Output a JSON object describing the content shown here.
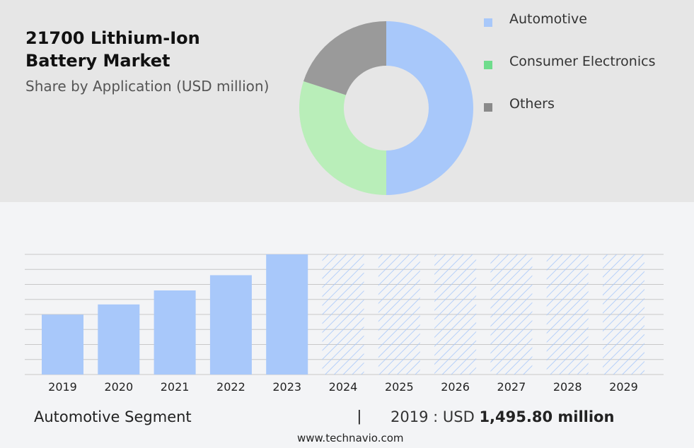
{
  "title": "21700 Lithium-Ion Battery Market",
  "subtitle": "Share by Application (USD million)",
  "colors": {
    "automotive": "#a8c8fa",
    "consumer_electronics": "#b9eeb9",
    "others": "#9a9a9a",
    "legend_consumer": "#6fdc8c",
    "legend_others": "#8a8a8a",
    "forecast_hatch": "#a8c8fa",
    "grid": "#c8c8c8"
  },
  "legend": [
    {
      "label": "Automotive",
      "color_key": "automotive"
    },
    {
      "label": "Consumer Electronics",
      "color_key": "legend_consumer"
    },
    {
      "label": "Others",
      "color_key": "legend_others"
    }
  ],
  "chart_data": [
    {
      "type": "pie",
      "title": "Share by Application (USD million)",
      "categories": [
        "Automotive",
        "Consumer Electronics",
        "Others"
      ],
      "values": [
        50,
        30,
        20
      ]
    },
    {
      "type": "bar",
      "categories": [
        "2019",
        "2020",
        "2021",
        "2022",
        "2023",
        "2024",
        "2025",
        "2026",
        "2027",
        "2028",
        "2029"
      ],
      "series": [
        {
          "name": "Automotive Segment",
          "values": [
            1495.8,
            1750,
            2100,
            2480,
            3000,
            3000,
            3000,
            3000,
            3000,
            3000,
            3000
          ]
        }
      ],
      "forecast_from": "2024",
      "ylim": [
        0,
        3000
      ],
      "grid": true
    }
  ],
  "footer": {
    "segment": "Automotive Segment",
    "separator": "|",
    "value_prefix": "2019 : USD",
    "value": "1,495.80 million"
  },
  "source": "www.technavio.com"
}
